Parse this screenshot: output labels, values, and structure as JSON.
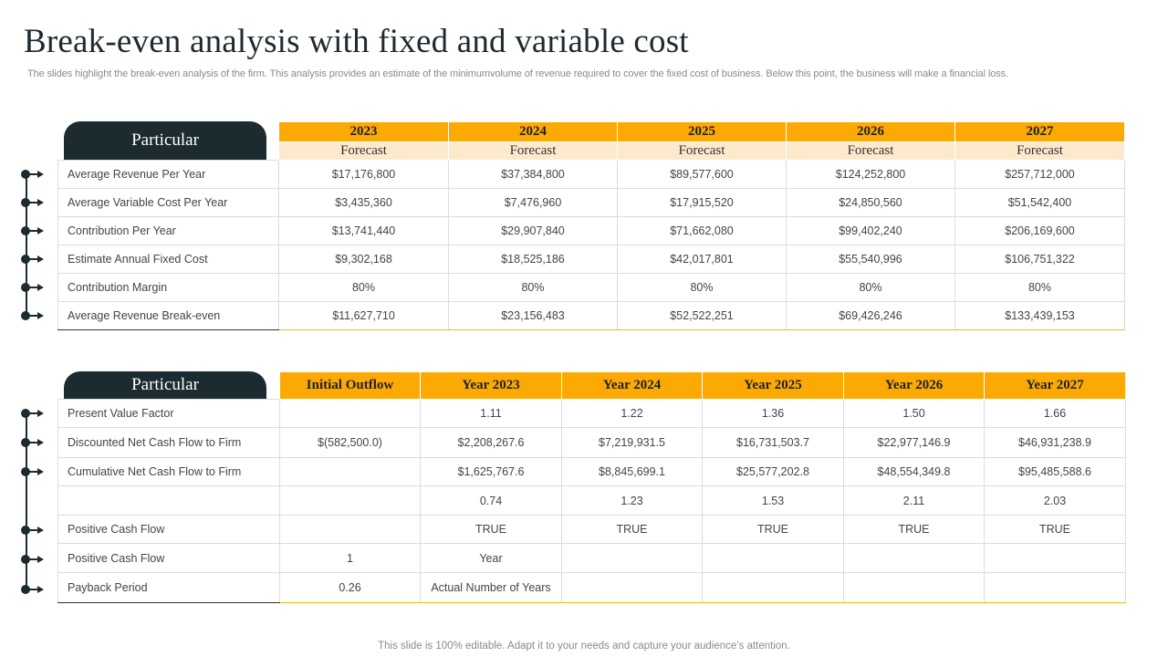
{
  "title": "Break-even analysis with fixed and variable cost",
  "subtitle": "The slides highlight the break-even analysis of the firm. This analysis provides an estimate of the minimumvolume of revenue required to cover the fixed cost of business. Below this point, the business will make a financial loss.",
  "footer": "This slide is 100% editable. Adapt it to your needs and capture your audience’s attention.",
  "table1": {
    "header_label": "Particular",
    "years": [
      "2023",
      "2024",
      "2025",
      "2026",
      "2027"
    ],
    "subheader": [
      "Forecast",
      "Forecast",
      "Forecast",
      "Forecast",
      "Forecast"
    ],
    "rows": [
      {
        "label": "Average  Revenue  Per Year",
        "values": [
          "$17,176,800",
          "$37,384,800",
          "$89,577,600",
          "$124,252,800",
          "$257,712,000"
        ]
      },
      {
        "label": "Average  Variable Cost Per Year",
        "values": [
          "$3,435,360",
          "$7,476,960",
          "$17,915,520",
          "$24,850,560",
          "$51,542,400"
        ]
      },
      {
        "label": "Contribution Per Year",
        "values": [
          "$13,741,440",
          "$29,907,840",
          "$71,662,080",
          "$99,402,240",
          "$206,169,600"
        ]
      },
      {
        "label": "Estimate Annual Fixed Cost",
        "values": [
          "$9,302,168",
          "$18,525,186",
          "$42,017,801",
          "$55,540,996",
          "$106,751,322"
        ]
      },
      {
        "label": "Contribution Margin",
        "values": [
          "80%",
          "80%",
          "80%",
          "80%",
          "80%"
        ]
      },
      {
        "label": "Average  Revenue  Break-even",
        "values": [
          "$11,627,710",
          "$23,156,483",
          "$52,522,251",
          "$69,426,246",
          "$133,439,153"
        ]
      }
    ]
  },
  "table2": {
    "header_label": "Particular",
    "columns": [
      "Initial Outflow",
      "Year 2023",
      "Year 2024",
      "Year 2025",
      "Year 2026",
      "Year 2027"
    ],
    "rows": [
      {
        "label": "Present Value Factor",
        "values": [
          "",
          "1.11",
          "1.22",
          "1.36",
          "1.50",
          "1.66"
        ]
      },
      {
        "label": "Discounted Net Cash Flow to Firm",
        "values": [
          "$(582,500.0)",
          "$2,208,267.6",
          "$7,219,931.5",
          "$16,731,503.7",
          "$22,977,146.9",
          "$46,931,238.9"
        ]
      },
      {
        "label": "Cumulative  Net Cash Flow to Firm",
        "values": [
          "",
          "$1,625,767.6",
          "$8,845,699.1",
          "$25,577,202.8",
          "$48,554,349.8",
          "$95,485,588.6"
        ]
      },
      {
        "label": "",
        "values": [
          "",
          "0.74",
          "1.23",
          "1.53",
          "2.11",
          "2.03"
        ]
      },
      {
        "label": "Positive Cash Flow",
        "values": [
          "",
          "TRUE",
          "TRUE",
          "TRUE",
          "TRUE",
          "TRUE"
        ]
      },
      {
        "label": "Positive Cash Flow",
        "values": [
          "1",
          "Year",
          "",
          "",
          "",
          ""
        ]
      },
      {
        "label": "Payback Period",
        "values": [
          "0.26",
          "Actual Number  of Years",
          "",
          "",
          "",
          ""
        ]
      }
    ]
  },
  "colors": {
    "accent": "#fca903",
    "accent_light": "#fdeacd",
    "dark": "#1b2b30"
  },
  "icons": [
    "timeline-arrow-icon"
  ]
}
